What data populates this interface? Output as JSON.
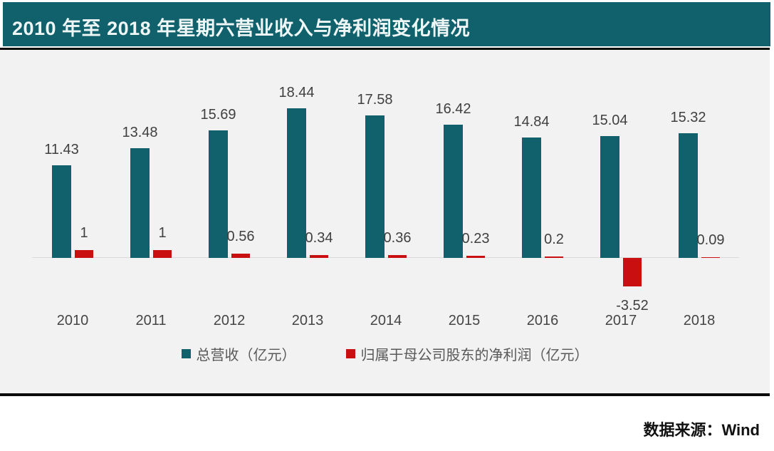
{
  "header": {
    "title": "2010 年至 2018 年星期六营业收入与净利润变化情况"
  },
  "colors": {
    "teal": "#11616D",
    "red": "#C90F0F",
    "chart_background": "#F2F2F2",
    "title_text": "#EEF7F6",
    "label_text": "#404040",
    "axis_line": "#D9D9D9",
    "divider": "#0B0B0B"
  },
  "chart_data": {
    "type": "bar",
    "title": "2010 年至 2018 年星期六营业收入与净利润变化情况",
    "categories": [
      "2010",
      "2011",
      "2012",
      "2013",
      "2014",
      "2015",
      "2016",
      "2017",
      "2018"
    ],
    "series": [
      {
        "name": "总营收（亿元）",
        "color": "#11616D",
        "values": [
          11.43,
          13.48,
          15.69,
          18.44,
          17.58,
          16.42,
          14.84,
          15.04,
          15.32
        ]
      },
      {
        "name": "归属于母公司股东的净利润（亿元）",
        "color": "#C90F0F",
        "values": [
          1,
          1,
          0.56,
          0.34,
          0.36,
          0.23,
          0.2,
          -3.52,
          0.09
        ]
      }
    ],
    "xlabel": "",
    "ylabel": "",
    "ylim": [
      -4,
      19
    ],
    "grid": false,
    "data_labels": true,
    "legend_position": "bottom"
  },
  "source": {
    "label": "数据来源：Wind"
  }
}
